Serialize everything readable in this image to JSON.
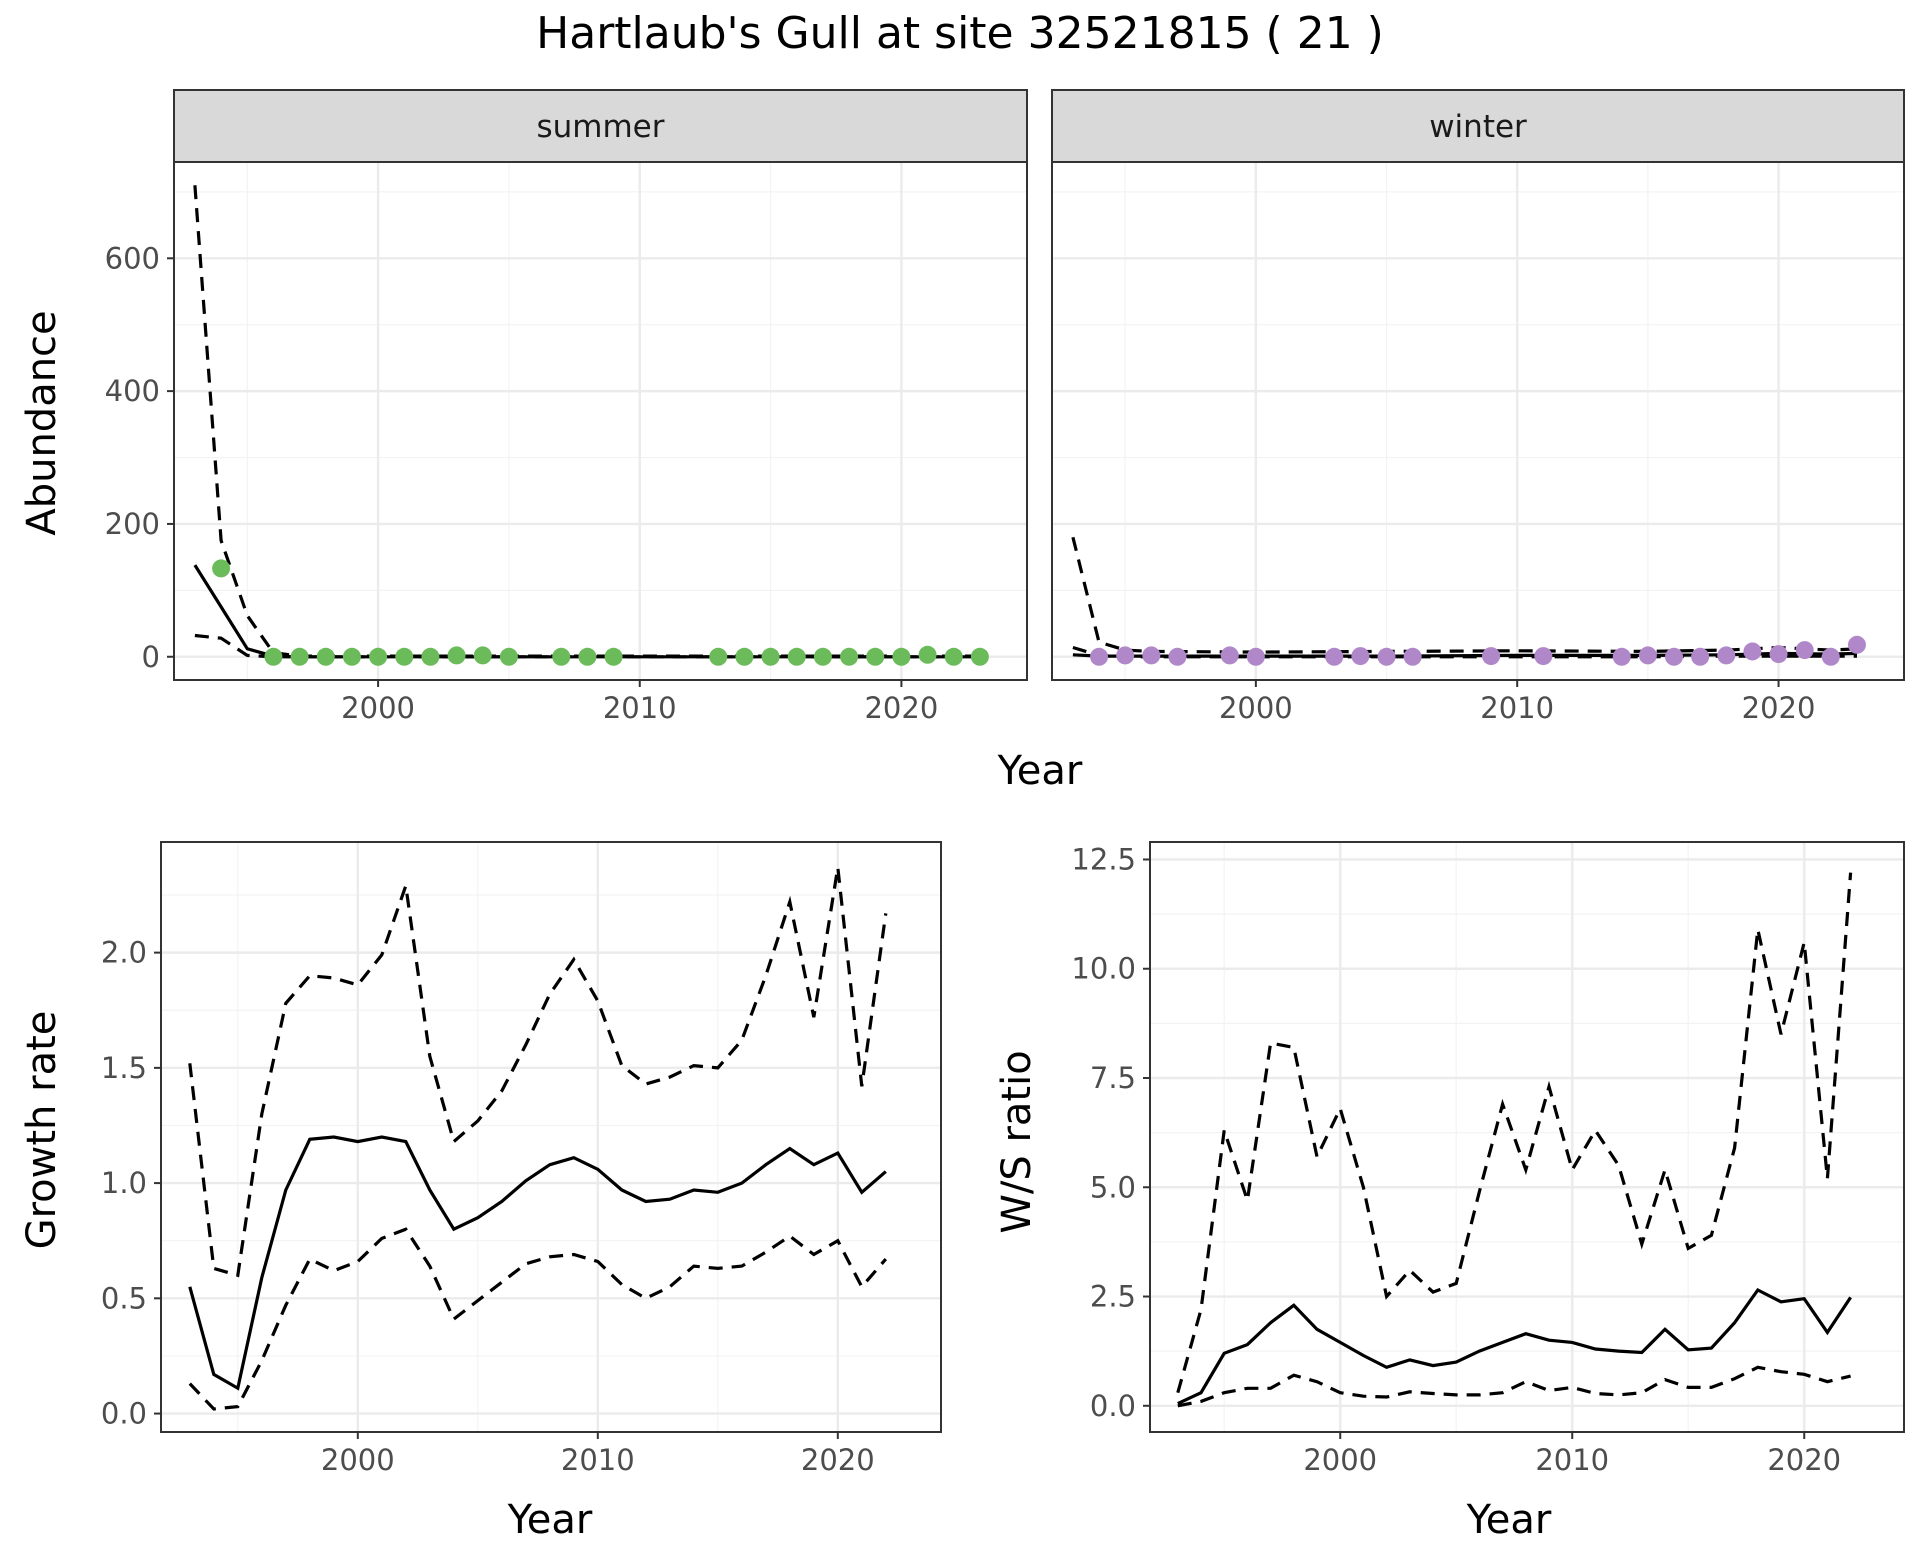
{
  "title": "Hartlaub's Gull at site 32521815 ( 21 )",
  "chart_data": [
    {
      "type": "line",
      "panel": "summer",
      "strip_label": "summer",
      "xlabel": "Year",
      "ylabel": "Abundance",
      "xlim": [
        1992.2,
        2024.8
      ],
      "ylim": [
        -35,
        745
      ],
      "x_ticks": [
        2000,
        2010,
        2020
      ],
      "y_ticks": [
        0,
        200,
        400,
        600
      ],
      "grid": true,
      "point_color": "#6cbb5a",
      "series": [
        {
          "name": "estimate",
          "style": "solid",
          "x": [
            1993,
            1994,
            1995,
            1996,
            1997,
            2000,
            2005,
            2010,
            2015,
            2020,
            2023
          ],
          "values": [
            138,
            75,
            12,
            1,
            0,
            0,
            0,
            0,
            0,
            0,
            0
          ]
        },
        {
          "name": "upper",
          "style": "dashed",
          "x": [
            1993,
            1994,
            1995,
            1996,
            1997,
            2000,
            2005,
            2010,
            2015,
            2020,
            2023
          ],
          "values": [
            710,
            175,
            62,
            6,
            1,
            1,
            1,
            1,
            1,
            1,
            1
          ]
        },
        {
          "name": "lower",
          "style": "dashed",
          "x": [
            1993,
            1994,
            1995,
            1996,
            1997,
            2000,
            2005,
            2010,
            2015,
            2020,
            2023
          ],
          "values": [
            32,
            28,
            2,
            0,
            0,
            0,
            0,
            0,
            0,
            0,
            0
          ]
        }
      ],
      "points": {
        "x": [
          1994,
          1996,
          1997,
          1998,
          1999,
          2000,
          2001,
          2002,
          2003,
          2004,
          2005,
          2007,
          2008,
          2009,
          2013,
          2014,
          2015,
          2016,
          2017,
          2018,
          2019,
          2020,
          2021,
          2022,
          2023
        ],
        "values": [
          133,
          0,
          0,
          0,
          0,
          0,
          0,
          0,
          2,
          2,
          0,
          0,
          0,
          0,
          0,
          0,
          0,
          0,
          0,
          0,
          0,
          0,
          3,
          0,
          0
        ]
      }
    },
    {
      "type": "line",
      "panel": "winter",
      "strip_label": "winter",
      "xlabel": "Year",
      "ylabel": "Abundance",
      "xlim": [
        1992.2,
        2024.8
      ],
      "ylim": [
        -35,
        745
      ],
      "x_ticks": [
        2000,
        2010,
        2020
      ],
      "y_ticks": [
        0,
        200,
        400,
        600
      ],
      "grid": true,
      "point_color": "#b088c9",
      "series": [
        {
          "name": "estimate",
          "style": "solid",
          "x": [
            1993,
            1994,
            1995,
            1996,
            2000,
            2005,
            2010,
            2015,
            2018,
            2020,
            2022,
            2023
          ],
          "values": [
            3,
            1,
            1,
            1,
            1,
            1,
            2,
            2,
            3,
            5,
            4,
            5
          ]
        },
        {
          "name": "upper",
          "style": "dashed",
          "x": [
            1993,
            1994,
            1995,
            1996,
            2000,
            2005,
            2010,
            2015,
            2018,
            2020,
            2022,
            2023
          ],
          "values": [
            180,
            22,
            10,
            8,
            7,
            8,
            9,
            8,
            10,
            14,
            10,
            12
          ]
        },
        {
          "name": "lower",
          "style": "dashed",
          "x": [
            1993,
            1994,
            1995,
            1996,
            2000,
            2005,
            2010,
            2015,
            2018,
            2020,
            2022,
            2023
          ],
          "values": [
            14,
            2,
            0,
            0,
            0,
            0,
            0,
            0,
            1,
            1,
            1,
            1
          ]
        }
      ],
      "points": {
        "x": [
          1994,
          1995,
          1996,
          1997,
          1999,
          2000,
          2003,
          2004,
          2005,
          2006,
          2009,
          2011,
          2014,
          2015,
          2016,
          2017,
          2018,
          2019,
          2020,
          2021,
          2022,
          2023
        ],
        "values": [
          0,
          2,
          2,
          0,
          2,
          0,
          0,
          1,
          0,
          0,
          1,
          1,
          0,
          2,
          0,
          0,
          2,
          8,
          4,
          10,
          0,
          18
        ]
      }
    },
    {
      "type": "line",
      "panel": "growth",
      "xlabel": "Year",
      "ylabel": "Growth rate",
      "xlim": [
        1991.8,
        2024.3
      ],
      "ylim": [
        -0.08,
        2.48
      ],
      "x_ticks": [
        2000,
        2010,
        2020
      ],
      "y_ticks": [
        0.0,
        0.5,
        1.0,
        1.5,
        2.0
      ],
      "y_tick_labels": [
        "0.0",
        "0.5",
        "1.0",
        "1.5",
        "2.0"
      ],
      "grid": true,
      "series": [
        {
          "name": "estimate",
          "style": "solid",
          "x": [
            1993,
            1994,
            1995,
            1996,
            1997,
            1998,
            1999,
            2000,
            2001,
            2002,
            2003,
            2004,
            2005,
            2006,
            2007,
            2008,
            2009,
            2010,
            2011,
            2012,
            2013,
            2014,
            2015,
            2016,
            2017,
            2018,
            2019,
            2020,
            2021,
            2022
          ],
          "values": [
            0.55,
            0.17,
            0.11,
            0.59,
            0.97,
            1.19,
            1.2,
            1.18,
            1.2,
            1.18,
            0.97,
            0.8,
            0.85,
            0.92,
            1.01,
            1.08,
            1.11,
            1.06,
            0.97,
            0.92,
            0.93,
            0.97,
            0.96,
            1.0,
            1.08,
            1.15,
            1.08,
            1.13,
            0.96,
            1.05
          ]
        },
        {
          "name": "upper",
          "style": "dashed",
          "x": [
            1993,
            1994,
            1995,
            1996,
            1997,
            1998,
            1999,
            2000,
            2001,
            2002,
            2003,
            2004,
            2005,
            2006,
            2007,
            2008,
            2009,
            2010,
            2011,
            2012,
            2013,
            2014,
            2015,
            2016,
            2017,
            2018,
            2019,
            2020,
            2021,
            2022
          ],
          "values": [
            1.52,
            0.63,
            0.6,
            1.3,
            1.78,
            1.9,
            1.89,
            1.86,
            1.99,
            2.29,
            1.55,
            1.18,
            1.27,
            1.4,
            1.6,
            1.82,
            1.97,
            1.79,
            1.51,
            1.43,
            1.46,
            1.51,
            1.5,
            1.62,
            1.9,
            2.22,
            1.72,
            2.37,
            1.42,
            2.17
          ]
        },
        {
          "name": "lower",
          "style": "dashed",
          "x": [
            1993,
            1994,
            1995,
            1996,
            1997,
            1998,
            1999,
            2000,
            2001,
            2002,
            2003,
            2004,
            2005,
            2006,
            2007,
            2008,
            2009,
            2010,
            2011,
            2012,
            2013,
            2014,
            2015,
            2016,
            2017,
            2018,
            2019,
            2020,
            2021,
            2022
          ],
          "values": [
            0.13,
            0.02,
            0.03,
            0.23,
            0.47,
            0.67,
            0.62,
            0.66,
            0.76,
            0.8,
            0.64,
            0.41,
            0.49,
            0.57,
            0.65,
            0.68,
            0.69,
            0.66,
            0.56,
            0.5,
            0.55,
            0.64,
            0.63,
            0.64,
            0.7,
            0.77,
            0.69,
            0.75,
            0.55,
            0.67
          ]
        }
      ]
    },
    {
      "type": "line",
      "panel": "ratio",
      "xlabel": "Year",
      "ylabel": "W/S ratio",
      "xlim": [
        1991.8,
        2024.3
      ],
      "ylim": [
        -0.6,
        12.9
      ],
      "x_ticks": [
        2000,
        2010,
        2020
      ],
      "y_ticks": [
        0.0,
        2.5,
        5.0,
        7.5,
        10.0,
        12.5
      ],
      "y_tick_labels": [
        "0.0",
        "2.5",
        "5.0",
        "7.5",
        "10.0",
        "12.5"
      ],
      "grid": true,
      "series": [
        {
          "name": "estimate",
          "style": "solid",
          "x": [
            1993,
            1994,
            1995,
            1996,
            1997,
            1998,
            1999,
            2000,
            2001,
            2002,
            2003,
            2004,
            2005,
            2006,
            2007,
            2008,
            2009,
            2010,
            2011,
            2012,
            2013,
            2014,
            2015,
            2016,
            2017,
            2018,
            2019,
            2020,
            2021,
            2022
          ],
          "values": [
            0.05,
            0.3,
            1.2,
            1.4,
            1.9,
            2.3,
            1.75,
            1.45,
            1.15,
            0.88,
            1.05,
            0.92,
            1.0,
            1.25,
            1.45,
            1.65,
            1.5,
            1.45,
            1.3,
            1.25,
            1.22,
            1.75,
            1.28,
            1.32,
            1.9,
            2.65,
            2.38,
            2.45,
            1.68,
            2.48
          ]
        },
        {
          "name": "upper",
          "style": "dashed",
          "x": [
            1993,
            1994,
            1995,
            1996,
            1997,
            1998,
            1999,
            2000,
            2001,
            2002,
            2003,
            2004,
            2005,
            2006,
            2007,
            2008,
            2009,
            2010,
            2011,
            2012,
            2013,
            2014,
            2015,
            2016,
            2017,
            2018,
            2019,
            2020,
            2021,
            2022
          ],
          "values": [
            0.3,
            2.2,
            6.3,
            4.7,
            8.3,
            8.2,
            5.7,
            6.8,
            5.0,
            2.5,
            3.1,
            2.6,
            2.8,
            4.9,
            6.9,
            5.4,
            7.3,
            5.4,
            6.3,
            5.5,
            3.7,
            5.4,
            3.6,
            3.9,
            5.9,
            10.9,
            8.5,
            10.6,
            5.2,
            12.2
          ]
        },
        {
          "name": "lower",
          "style": "dashed",
          "x": [
            1993,
            1994,
            1995,
            1996,
            1997,
            1998,
            1999,
            2000,
            2001,
            2002,
            2003,
            2004,
            2005,
            2006,
            2007,
            2008,
            2009,
            2010,
            2011,
            2012,
            2013,
            2014,
            2015,
            2016,
            2017,
            2018,
            2019,
            2020,
            2021,
            2022
          ],
          "values": [
            0.0,
            0.1,
            0.3,
            0.4,
            0.4,
            0.7,
            0.55,
            0.3,
            0.22,
            0.2,
            0.32,
            0.28,
            0.25,
            0.25,
            0.3,
            0.55,
            0.35,
            0.42,
            0.28,
            0.25,
            0.3,
            0.6,
            0.42,
            0.42,
            0.62,
            0.88,
            0.78,
            0.72,
            0.55,
            0.68
          ]
        }
      ]
    }
  ]
}
